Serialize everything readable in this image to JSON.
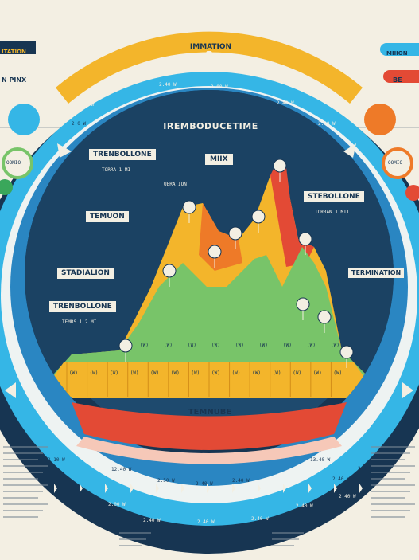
{
  "colors": {
    "background": "#f3efe3",
    "navy": "#173552",
    "mid_blue": "#1d5d8c",
    "light_blue": "#35b6e6",
    "yellow": "#f3b52b",
    "orange": "#ee7a28",
    "red": "#e34a35",
    "green": "#78c469",
    "dark_green": "#3aa75b"
  },
  "header": {
    "top_center": "IMMATION",
    "top_left": "ITATION",
    "top_right": "MIIION",
    "left_tag": "N PINX",
    "right_tag": "BE"
  },
  "chart": {
    "title": "IREMBODUCETIME",
    "bottom_title": "TEMNUBE",
    "labels": {
      "trenbollone_top": "TRENBOLLONE",
      "trenbollone_top_sub": "TORRA 1 MI",
      "ueration": "UERATION",
      "mix": "MIIX",
      "stebollone": "STEBOLLONE",
      "stebollone_sub": "TORRAN 1.MII",
      "temuon": "TEMUON",
      "stadialion": "STADIALION",
      "trenbollone_low": "TRENBOLLONE",
      "trenbollone_low_sub": "TEMRS 1 2 MI",
      "termination": "TERMINATION"
    },
    "bar_values": [
      "(W)",
      "(W)",
      "(W)",
      "(W)",
      "(W)",
      "(W)",
      "(W)",
      "(W)",
      "(W)",
      "(W)",
      "(W)",
      "(W)",
      "(W)",
      "(W)"
    ],
    "green_values": [
      "(W)",
      "(W)",
      "(W)",
      "(W)",
      "(W)",
      "(W)",
      "(W)",
      "(W)",
      "(W)"
    ],
    "ring_ticks_top": [
      "2.0 W",
      "2.40 W",
      "2.00 W",
      "2.40 W",
      "2.40 W"
    ],
    "ring_ticks_bottom": [
      "2.00 W",
      "2.40 W",
      "2.40 W",
      "2.40 W",
      "2.40 W",
      "2.40 W"
    ],
    "ring_ticks_small": [
      "2.0 W",
      "2.10 W",
      "12.40 W",
      "13.40 W",
      "2.0 W"
    ],
    "ring_ticks_lower": [
      "2.50 W",
      "2.40 W",
      "2.40 W",
      "2.40 W"
    ]
  },
  "side": {
    "left_badge": "OOMIO",
    "right_badge": "OOMIO"
  }
}
